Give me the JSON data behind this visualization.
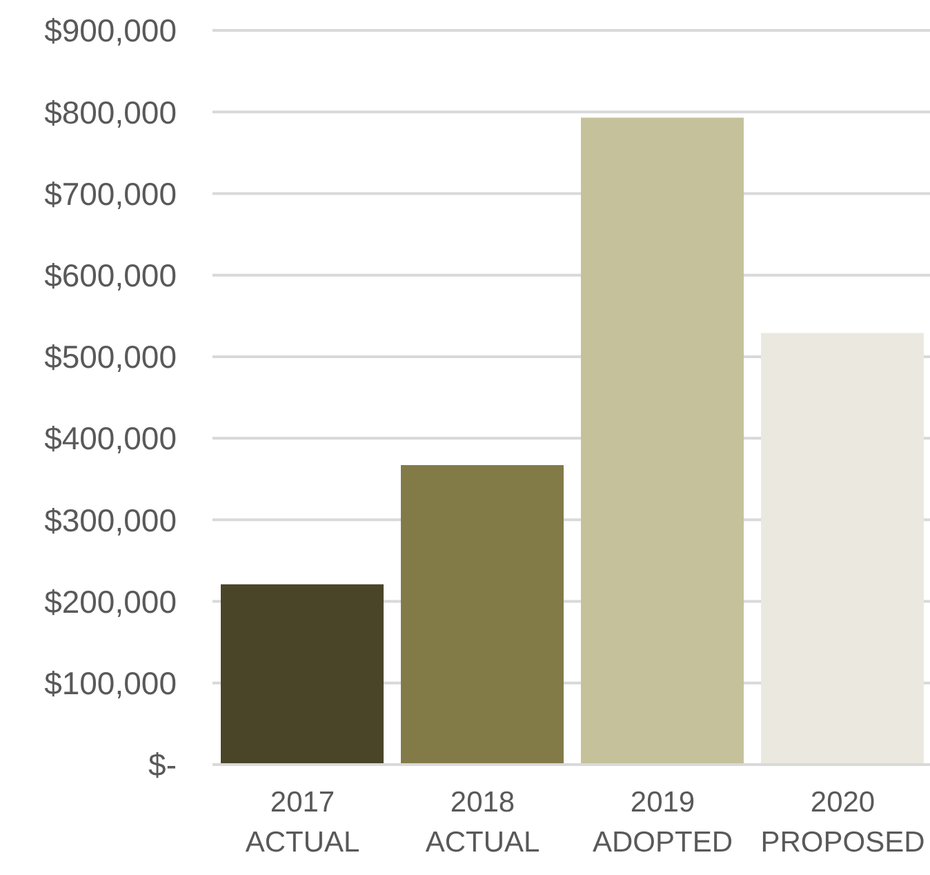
{
  "chart_data": {
    "type": "bar",
    "categories": [
      "2017\nACTUAL",
      "2018\nACTUAL",
      "2019\nADOPTED",
      "2020\nPROPOSED"
    ],
    "values": [
      221000,
      367000,
      793000,
      529000
    ],
    "colors": [
      "#4a4529",
      "#827b48",
      "#c5c19a",
      "#ebe9df"
    ],
    "ylim": [
      0,
      900000
    ],
    "yticks": [
      {
        "value": 0,
        "label": "$-"
      },
      {
        "value": 100000,
        "label": "$100,000"
      },
      {
        "value": 200000,
        "label": "$200,000"
      },
      {
        "value": 300000,
        "label": "$300,000"
      },
      {
        "value": 400000,
        "label": "$400,000"
      },
      {
        "value": 500000,
        "label": "$500,000"
      },
      {
        "value": 600000,
        "label": "$600,000"
      },
      {
        "value": 700000,
        "label": "$700,000"
      },
      {
        "value": 800000,
        "label": "$800,000"
      },
      {
        "value": 900000,
        "label": "$900,000"
      }
    ],
    "grid": "y",
    "legend": false
  }
}
